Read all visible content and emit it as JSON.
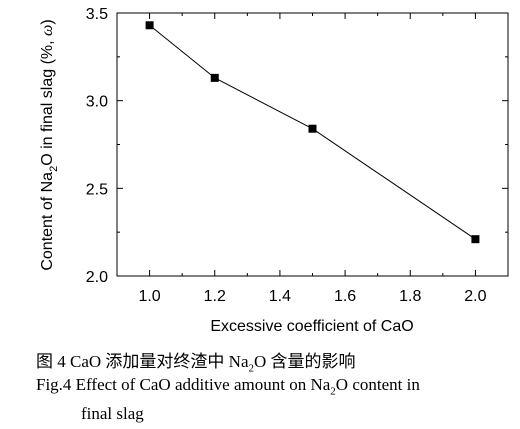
{
  "chart_data": {
    "type": "line",
    "x": [
      1.0,
      1.2,
      1.5,
      2.0
    ],
    "y": [
      3.43,
      3.13,
      2.84,
      2.21
    ],
    "xlabel": "Excessive coefficient of CaO",
    "ylabel": "Content of Na2O in final slag (%, ω)",
    "ylabel_parts": {
      "before": "Content of Na",
      "sub": "2",
      "after": "O in final slag (%, ",
      "omega": "ω",
      "close": ")"
    },
    "xlim": [
      0.9,
      2.1
    ],
    "ylim": [
      2.0,
      3.5
    ],
    "xticks": [
      "1.0",
      "1.2",
      "1.4",
      "1.6",
      "1.8",
      "2.0"
    ],
    "yticks": [
      "2.0",
      "2.5",
      "3.0",
      "3.5"
    ],
    "marker": "square",
    "grid": false
  },
  "captions": {
    "cn_before": "图 4  CaO 添加量对终渣中 Na",
    "cn_sub": "2",
    "cn_after": "O 含量的影响",
    "en_before": "Fig.4 Effect of CaO additive amount on Na",
    "en_sub": "2",
    "en_after": "O content in",
    "en_line2": "final slag"
  }
}
